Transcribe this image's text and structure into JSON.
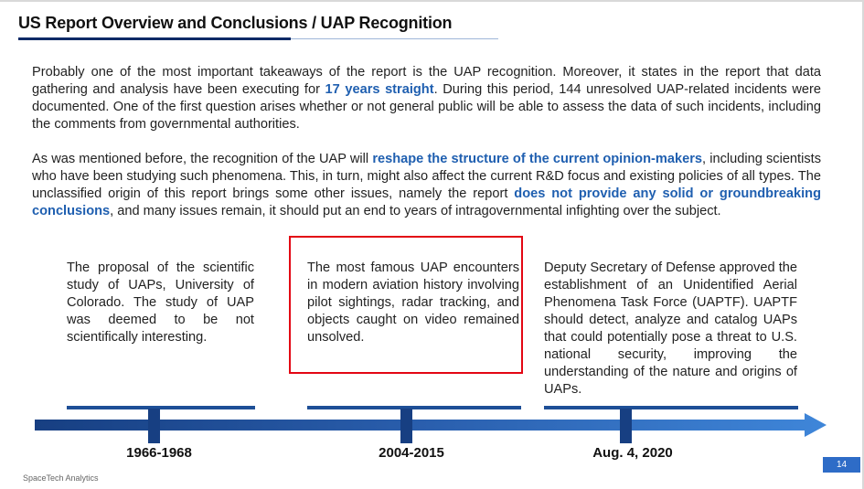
{
  "slide": {
    "title": "US Report Overview and Conclusions / UAP Recognition",
    "paragraph1": {
      "before": "Probably one of the most important takeaways of the report is the UAP recognition. Moreover, it states in the report that data gathering and analysis have been executing for ",
      "highlight": "17 years straight",
      "after": ". During this period, 144 unresolved UAP-related incidents were documented. One of the first question arises whether or not general public will be able to assess the data of such incidents, including the comments from governmental authorities."
    },
    "paragraph2": {
      "part1": "As was mentioned before, the recognition of the UAP will ",
      "highlight1": "reshape the structure of the current opinion-makers",
      "part2": ", including scientists who have been studying such phenomena. This, in turn, might also affect the current R&D focus and existing policies of all types. The unclassified origin of this report brings some other issues, namely the report ",
      "highlight2": "does not provide any solid or groundbreaking conclusions",
      "part3": ", and many issues remain, it should put an end to years of intragovernmental infighting over the subject."
    },
    "timeline": [
      {
        "date": "1966-1968",
        "text": "The proposal of the scientific study of UAPs, University of Colorado. The study of UAP was deemed to be not scientifically interesting."
      },
      {
        "date": "2004-2015",
        "text": "The most famous UAP encounters in modern aviation history involving pilot sightings, radar tracking, and objects caught on video remained unsolved."
      },
      {
        "date": "Aug. 4, 2020",
        "text": "Deputy Secretary of Defense approved the establishment of an Unidentified Aerial Phenomena Task Force (UAPTF). UAPTF should detect, analyze and catalog UAPs that could potentially pose a threat to U.S. national security, improving the understanding of the nature and origins of UAPs."
      }
    ],
    "footer": "SpaceTech Analytics",
    "page_number": "14",
    "colors": {
      "accent": "#1f5fb0",
      "title_underline": "#0d2a66",
      "timeline_dark": "#173f82",
      "timeline_light": "#3f86d9",
      "highlight_box": "#e30613",
      "page_badge": "#2e6cc7"
    }
  }
}
